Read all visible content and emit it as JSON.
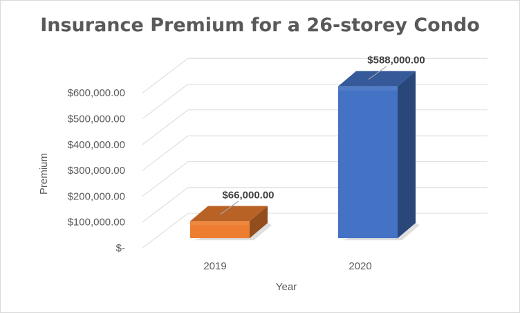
{
  "chart_data": {
    "type": "bar",
    "title": "Insurance Premium for a 26-storey Condo",
    "xlabel": "Year",
    "ylabel": "Premium",
    "categories": [
      "2019",
      "2020"
    ],
    "values": [
      66000,
      588000
    ],
    "data_labels": [
      "$66,000.00",
      "$588,000.00"
    ],
    "colors": [
      "#ED7D31",
      "#4472C4"
    ],
    "ylim": [
      0,
      600000
    ],
    "yticks": [
      0,
      100000,
      200000,
      300000,
      400000,
      500000,
      600000
    ],
    "ytick_labels": [
      "$-",
      "$100,000.00",
      "$200,000.00",
      "$300,000.00",
      "$400,000.00",
      "$500,000.00",
      "$600,000.00"
    ],
    "grid": true,
    "legend": "none",
    "style": "3d-column"
  }
}
